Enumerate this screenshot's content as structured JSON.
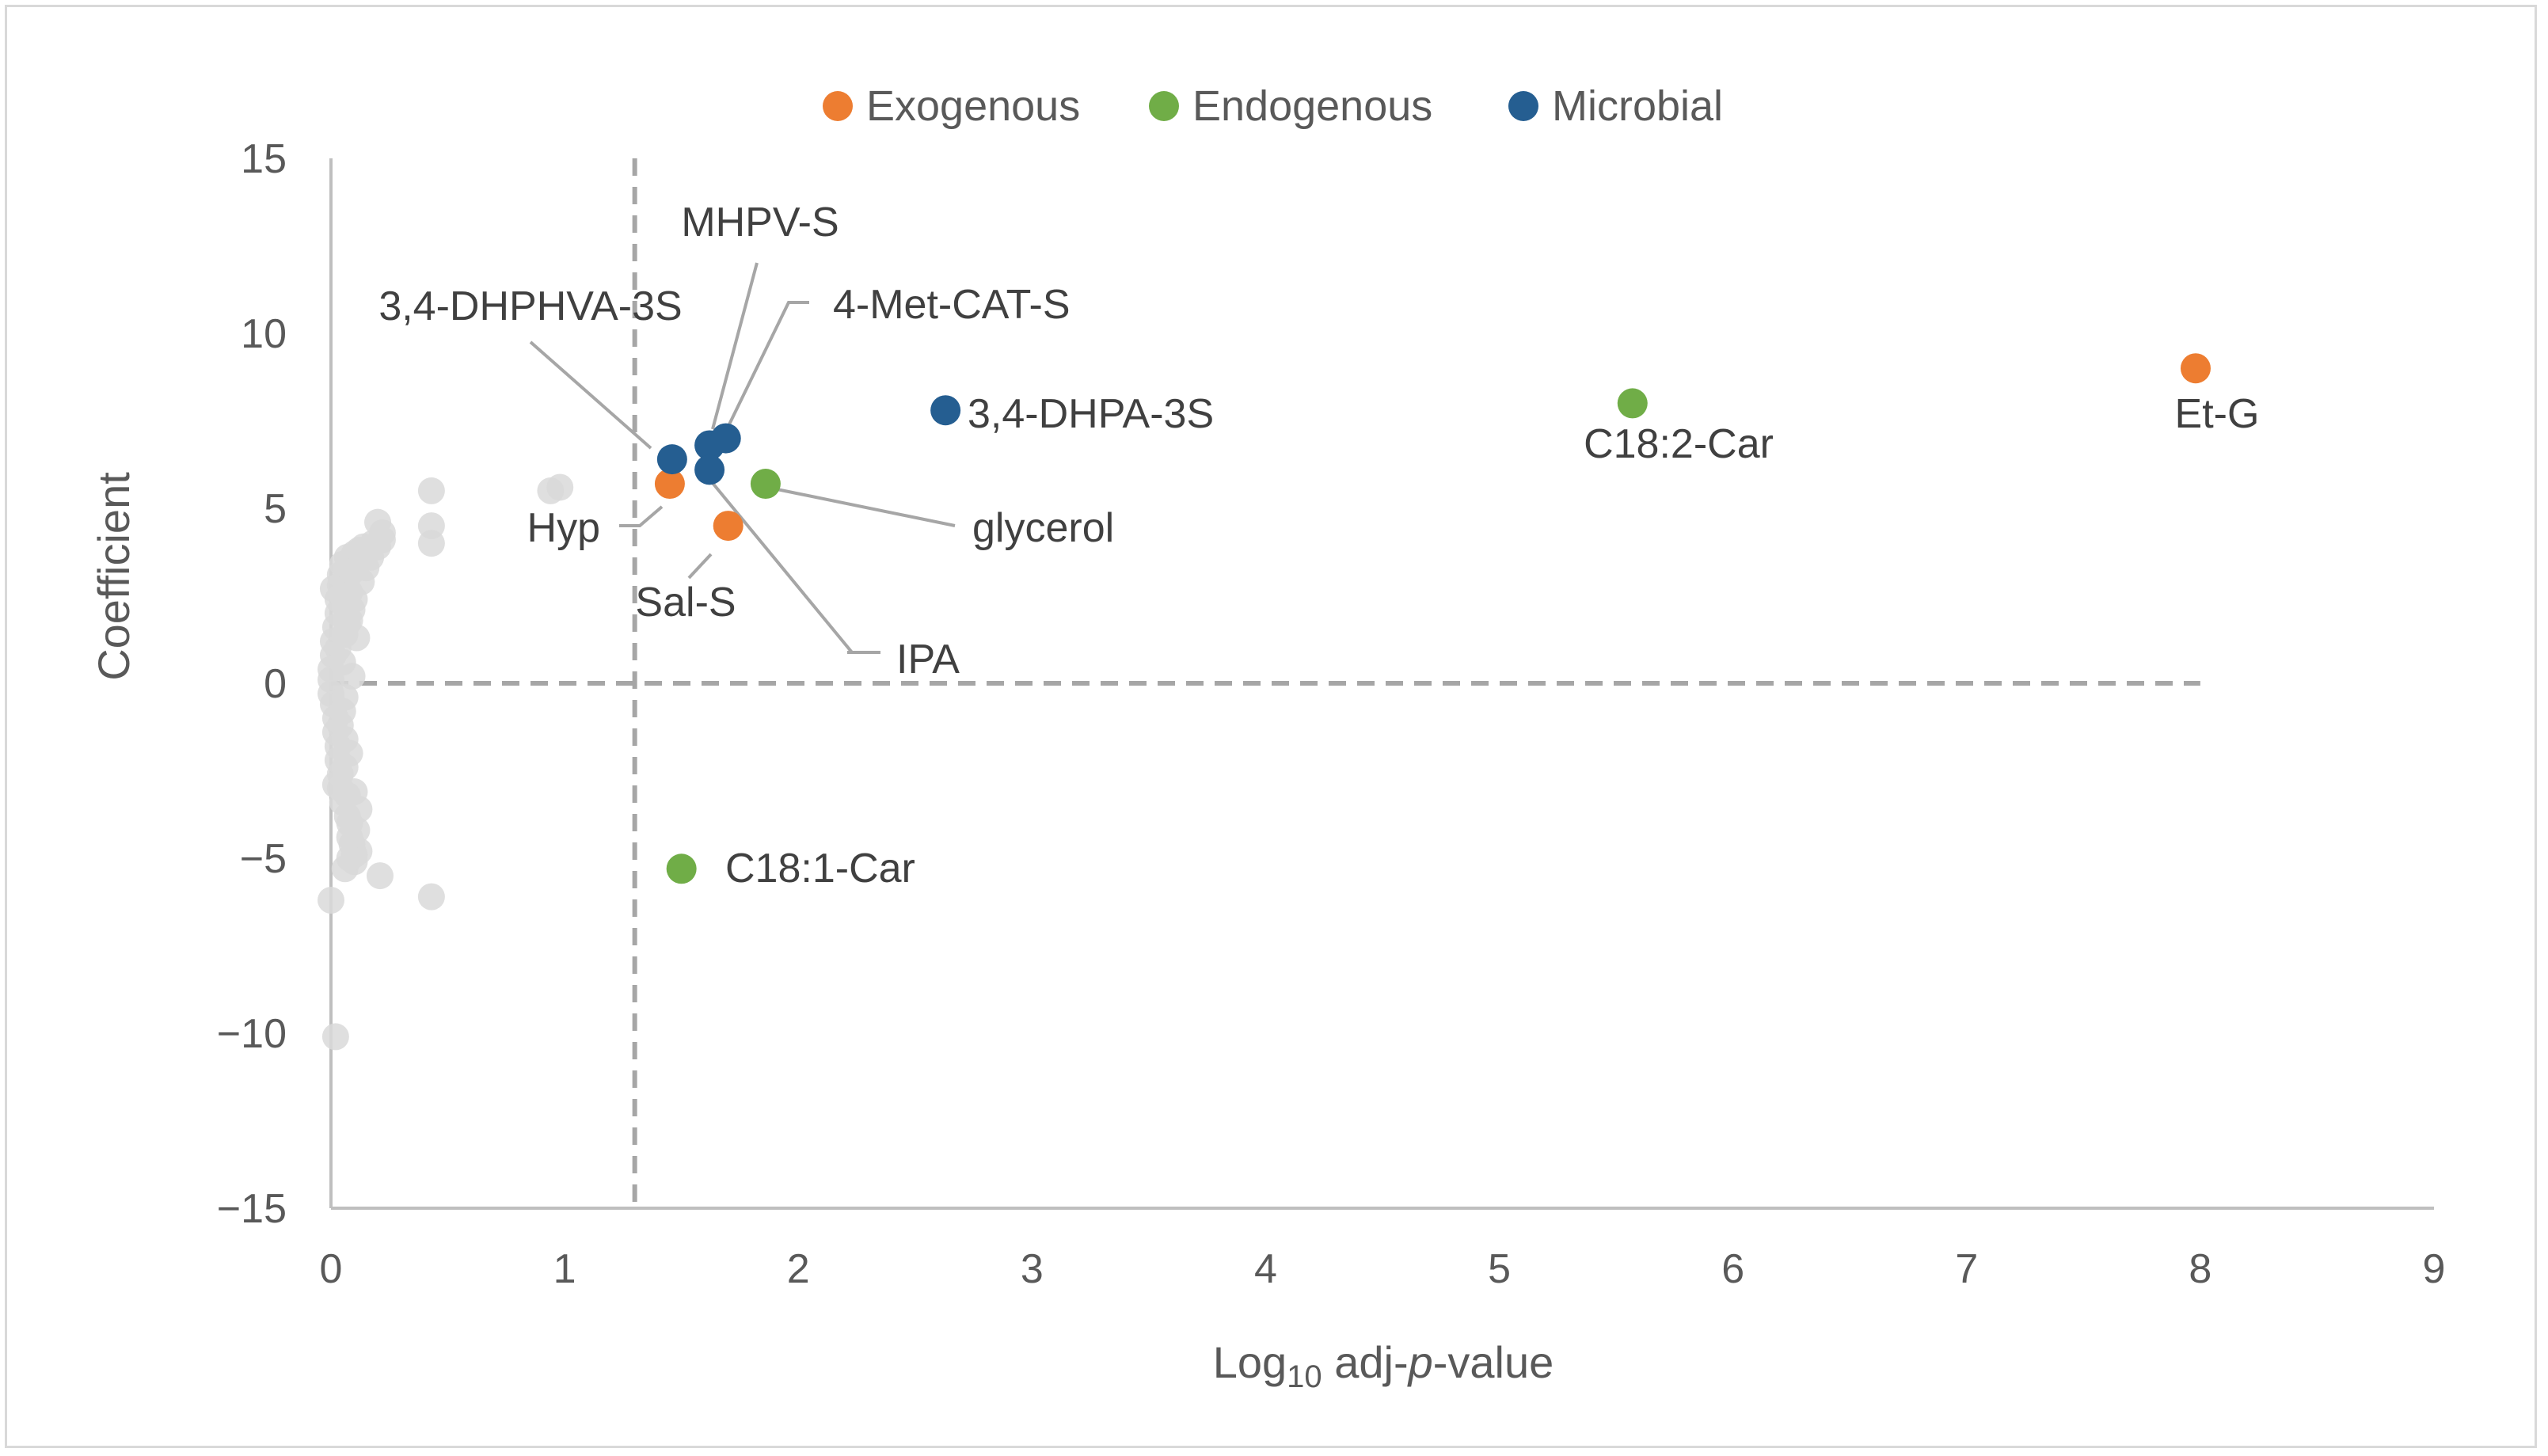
{
  "chart_data": {
    "type": "scatter",
    "title": "",
    "xlabel_parts": {
      "base": "Log",
      "sub": "10",
      "mid": " adj-",
      "italic": "p",
      "tail": "-value"
    },
    "ylabel": "Coefficient",
    "xlim": [
      0,
      9
    ],
    "ylim": [
      -15,
      15
    ],
    "x_ticks": [
      0,
      1,
      2,
      3,
      4,
      5,
      6,
      7,
      8,
      9
    ],
    "y_ticks": [
      15,
      10,
      5,
      0,
      -5,
      -10,
      -15
    ],
    "y_tick_labels": [
      "15",
      "10",
      "5",
      "0",
      "−5",
      "−10",
      "−15"
    ],
    "grid": false,
    "legend_position": "top",
    "thresholds": {
      "x": 1.3,
      "y": 0
    },
    "colors": {
      "Exogenous": "#ed7d31",
      "Endogenous": "#70ad47",
      "Microbial": "#255e91",
      "background": "#d9d9d9",
      "threshold": "#a6a6a6"
    },
    "legend": [
      "Exogenous",
      "Endogenous",
      "Microbial"
    ],
    "labeled_points": [
      {
        "label": "Et-G",
        "group": "Exogenous",
        "x": 7.98,
        "y": 9.0
      },
      {
        "label": "Hyp",
        "group": "Exogenous",
        "x": 1.45,
        "y": 5.7
      },
      {
        "label": "Sal-S",
        "group": "Exogenous",
        "x": 1.7,
        "y": 4.5
      },
      {
        "label": "C18:2-Car",
        "group": "Endogenous",
        "x": 5.57,
        "y": 8.0
      },
      {
        "label": "glycerol",
        "group": "Endogenous",
        "x": 1.86,
        "y": 5.7
      },
      {
        "label": "C18:1-Car",
        "group": "Endogenous",
        "x": 1.5,
        "y": -5.3
      },
      {
        "label": "3,4-DHPA-3S",
        "group": "Microbial",
        "x": 2.63,
        "y": 7.8
      },
      {
        "label": "3,4-DHPHVA-3S",
        "group": "Microbial",
        "x": 1.46,
        "y": 6.4
      },
      {
        "label": "MHPV-S",
        "group": "Microbial",
        "x": 1.62,
        "y": 6.8
      },
      {
        "label": "4-Met-CAT-S",
        "group": "Microbial",
        "x": 1.69,
        "y": 7.0
      },
      {
        "label": "IPA",
        "group": "Microbial",
        "x": 1.62,
        "y": 6.1
      }
    ],
    "background_points": [
      [
        0.0,
        0.1
      ],
      [
        0.0,
        0.4
      ],
      [
        0.0,
        -0.3
      ],
      [
        0.01,
        0.8
      ],
      [
        0.01,
        -0.6
      ],
      [
        0.01,
        1.2
      ],
      [
        0.02,
        -1.0
      ],
      [
        0.02,
        1.6
      ],
      [
        0.02,
        -1.4
      ],
      [
        0.03,
        2.0
      ],
      [
        0.03,
        -1.8
      ],
      [
        0.03,
        2.4
      ],
      [
        0.03,
        -2.2
      ],
      [
        0.04,
        2.8
      ],
      [
        0.04,
        -2.6
      ],
      [
        0.04,
        3.1
      ],
      [
        0.04,
        -3.0
      ],
      [
        0.05,
        3.4
      ],
      [
        0.05,
        -3.4
      ],
      [
        0.05,
        0.6
      ],
      [
        0.05,
        -0.8
      ],
      [
        0.06,
        1.4
      ],
      [
        0.06,
        -1.6
      ],
      [
        0.06,
        2.2
      ],
      [
        0.06,
        -2.4
      ],
      [
        0.07,
        3.0
      ],
      [
        0.07,
        -3.2
      ],
      [
        0.07,
        3.6
      ],
      [
        0.07,
        -3.8
      ],
      [
        0.08,
        2.6
      ],
      [
        0.08,
        -4.0
      ],
      [
        0.08,
        1.8
      ],
      [
        0.08,
        -4.4
      ],
      [
        0.09,
        3.2
      ],
      [
        0.09,
        -4.6
      ],
      [
        0.09,
        0.2
      ],
      [
        0.1,
        2.4
      ],
      [
        0.1,
        -4.9
      ],
      [
        0.1,
        3.7
      ],
      [
        0.1,
        -5.1
      ],
      [
        0.11,
        3.5
      ],
      [
        0.11,
        -4.2
      ],
      [
        0.12,
        3.8
      ],
      [
        0.12,
        -3.6
      ],
      [
        0.13,
        2.9
      ],
      [
        0.14,
        3.9
      ],
      [
        0.15,
        3.3
      ],
      [
        0.17,
        3.6
      ],
      [
        0.18,
        4.0
      ],
      [
        0.2,
        4.6
      ],
      [
        0.2,
        3.9
      ],
      [
        0.22,
        4.3
      ],
      [
        0.22,
        4.1
      ],
      [
        0.21,
        -5.5
      ],
      [
        0.0,
        -6.2
      ],
      [
        0.02,
        -10.1
      ],
      [
        0.43,
        5.5
      ],
      [
        0.43,
        4.5
      ],
      [
        0.43,
        4.0
      ],
      [
        0.43,
        -6.1
      ],
      [
        0.94,
        5.5
      ],
      [
        0.98,
        5.6
      ],
      [
        0.01,
        2.7
      ],
      [
        0.02,
        -2.9
      ],
      [
        0.03,
        1.0
      ],
      [
        0.04,
        -1.2
      ],
      [
        0.05,
        2.5
      ],
      [
        0.06,
        -0.4
      ],
      [
        0.07,
        1.7
      ],
      [
        0.08,
        -2.0
      ],
      [
        0.09,
        2.1
      ],
      [
        0.1,
        -3.1
      ],
      [
        0.11,
        1.3
      ],
      [
        0.12,
        -4.8
      ],
      [
        0.06,
        -5.3
      ],
      [
        0.08,
        -5.0
      ]
    ]
  }
}
